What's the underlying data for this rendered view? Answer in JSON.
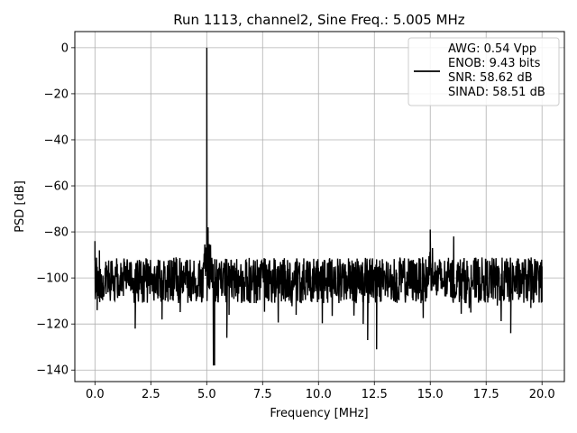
{
  "chart_data": {
    "type": "line",
    "title": "Run 1113, channel2, Sine Freq.: 5.005 MHz",
    "xlabel": "Frequency [MHz]",
    "ylabel": "PSD [dB]",
    "xlim": [
      -0.9,
      21.0
    ],
    "ylim": [
      -145,
      7
    ],
    "xticks": [
      0.0,
      2.5,
      5.0,
      7.5,
      10.0,
      12.5,
      15.0,
      17.5,
      20.0
    ],
    "xtick_labels": [
      "0.0",
      "2.5",
      "5.0",
      "7.5",
      "10.0",
      "12.5",
      "15.0",
      "17.5",
      "20.0"
    ],
    "yticks": [
      0,
      -20,
      -40,
      -60,
      -80,
      -100,
      -120,
      -140
    ],
    "ytick_labels": [
      "0",
      "−20",
      "−40",
      "−60",
      "−80",
      "−100",
      "−120",
      "−140"
    ],
    "grid": true,
    "legend_position": "top-right",
    "legend_lines": [
      "AWG: 0.54 Vpp",
      "ENOB: 9.43 bits",
      "SNR: 58.62 dB",
      "SINAD: 58.51 dB"
    ],
    "line_color": "#000000",
    "noise_floor_db": -101,
    "series": [
      {
        "values_note": "",
        "x": [
          0.0,
          0.1,
          0.2,
          0.3,
          0.5,
          1.0,
          1.5,
          1.8,
          2.0,
          2.5,
          3.0,
          3.5,
          4.0,
          4.5,
          4.8,
          4.95,
          5.005,
          5.06,
          5.15,
          5.3,
          5.4,
          5.5,
          6.0,
          7.0,
          8.0,
          9.0,
          10.0,
          11.0,
          12.0,
          12.2,
          12.6,
          13.0,
          14.0,
          14.8,
          15.0,
          15.1,
          15.3,
          16.0,
          16.05,
          17.0,
          18.0,
          18.6,
          19.0,
          19.5,
          20.0
        ],
        "y": [
          -84,
          -114,
          -88,
          -103,
          -107,
          -105,
          -102,
          -122,
          -104,
          -101,
          -118,
          -103,
          -102,
          -104,
          -96,
          -90,
          0,
          -78,
          -95,
          -138,
          -100,
          -103,
          -116,
          -104,
          -101,
          -116,
          -103,
          -104,
          -120,
          -127,
          -130,
          -102,
          -103,
          -93,
          -80,
          -87,
          -97,
          -102,
          -82,
          -103,
          -112,
          -124,
          -103,
          -113,
          -95
        ]
      }
    ],
    "markers": [
      {
        "x": 0.0,
        "y": -84
      },
      {
        "x": 5.005,
        "y": 0
      },
      {
        "x": 5.06,
        "y": -78
      },
      {
        "x": 5.35,
        "y": -138
      },
      {
        "x": 5.9,
        "y": -126
      },
      {
        "x": 12.2,
        "y": -127
      },
      {
        "x": 12.6,
        "y": -131
      },
      {
        "x": 15.0,
        "y": -79
      },
      {
        "x": 16.05,
        "y": -82
      },
      {
        "x": 18.6,
        "y": -124
      }
    ]
  }
}
